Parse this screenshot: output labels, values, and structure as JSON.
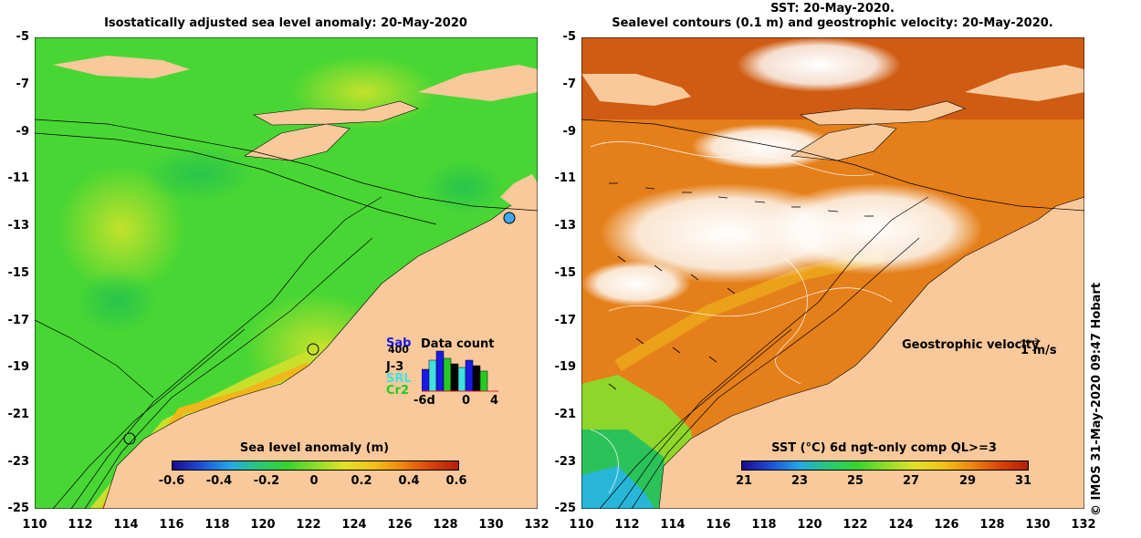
{
  "left_panel": {
    "title": "Isostatically adjusted sea level anomaly: 20-May-2020",
    "colorbar": {
      "label": "Sea level anomaly (m)",
      "ticks": [
        "-0.6",
        "-0.4",
        "-0.2",
        "0",
        "0.2",
        "0.4",
        "0.6"
      ],
      "colors": [
        "#1a0a8c",
        "#1e4fd8",
        "#23a7e8",
        "#27c97a",
        "#35d231",
        "#8bdd2a",
        "#e1e12a",
        "#f0c41a",
        "#ef8a10",
        "#d9440c",
        "#b41e0a"
      ]
    },
    "data_count": {
      "title": "Data count",
      "max_label": "400",
      "satellites": [
        {
          "name": "Sab",
          "color": "#1a1ae6"
        },
        {
          "name": "J-3",
          "color": "#000000"
        },
        {
          "name": "SRL",
          "color": "#40e0e0"
        },
        {
          "name": "Cr2",
          "color": "#22cc22"
        }
      ],
      "x_labels": [
        "-6d",
        "0",
        "4"
      ]
    }
  },
  "right_panel": {
    "title_line1": "SST: 20-May-2020.",
    "title_line2": "Sealevel contours (0.1 m) and geostrophic velocity: 20-May-2020.",
    "colorbar": {
      "label": "SST (°C) 6d ngt-only comp QL>=3",
      "ticks": [
        "21",
        "23",
        "25",
        "27",
        "29",
        "31"
      ],
      "colors": [
        "#1a0a8c",
        "#1e4fd8",
        "#23a7e8",
        "#27c97a",
        "#35d231",
        "#8bdd2a",
        "#e1e12a",
        "#f0c41a",
        "#ef8a10",
        "#d9440c",
        "#b41e0a"
      ]
    },
    "velocity_legend": {
      "label": "Geostrophic velocity",
      "scale": "1 m/s"
    }
  },
  "axes": {
    "y_ticks": [
      "-5",
      "-7",
      "-9",
      "-11",
      "-13",
      "-15",
      "-17",
      "-19",
      "-21",
      "-23",
      "-25"
    ],
    "x_ticks": [
      "110",
      "112",
      "114",
      "116",
      "118",
      "120",
      "122",
      "124",
      "126",
      "128",
      "130",
      "132"
    ]
  },
  "credit": "© IMOS 31-May-2020 09:47 Hobart",
  "colors": {
    "land": "#f9c99b",
    "sla_green": "#3fd73a",
    "sla_yellow": "#bde22c",
    "sst_orange": "#e9851a",
    "sst_dark": "#cf5c12"
  }
}
